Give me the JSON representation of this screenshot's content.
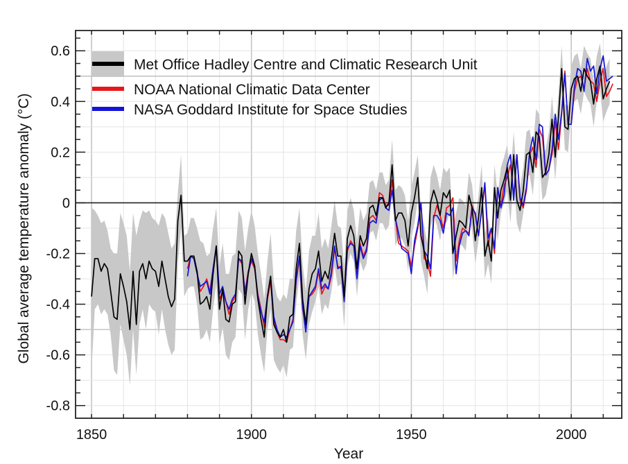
{
  "chart_data": {
    "type": "line",
    "title": "",
    "xlabel": "Year",
    "ylabel": "Global average temperature anomaly (°C)",
    "xlim": [
      1845,
      2015.8
    ],
    "ylim": [
      -0.85,
      0.68
    ],
    "x_ticks": [
      1850,
      1900,
      1950,
      2000
    ],
    "x_tick_labels": [
      "1850",
      "1900",
      "1950",
      "2000"
    ],
    "x_minor_step": 10,
    "y_ticks": [
      -0.8,
      -0.6,
      -0.4,
      -0.2,
      0,
      0.2,
      0.4,
      0.6
    ],
    "y_tick_labels": [
      "-0.8",
      "-0.6",
      "-0.4",
      "-0.2",
      "0",
      "0.2",
      "0.4",
      "0.6"
    ],
    "y_minor_step": 0.05,
    "grid": true,
    "emphasized_gridlines_y": [
      0.5,
      -0.5
    ],
    "zero_line": true,
    "legend_position": "top-left",
    "legend": [
      {
        "name": "Met Office Hadley Centre and Climatic Research Unit",
        "color": "#000000",
        "with_band": true,
        "band_color": "#c8c8c8"
      },
      {
        "name": "NOAA National Climatic Data Center",
        "color": "#e8161b"
      },
      {
        "name": "NASA Goddard Institute for Space Studies",
        "color": "#1414d8"
      }
    ],
    "series": [
      {
        "name": "Met Office Hadley Centre and Climatic Research Unit",
        "color": "#000000",
        "start_year": 1850,
        "values": [
          -0.37,
          -0.22,
          -0.22,
          -0.27,
          -0.24,
          -0.26,
          -0.35,
          -0.45,
          -0.46,
          -0.28,
          -0.33,
          -0.39,
          -0.5,
          -0.27,
          -0.48,
          -0.27,
          -0.24,
          -0.3,
          -0.23,
          -0.26,
          -0.27,
          -0.33,
          -0.23,
          -0.3,
          -0.37,
          -0.41,
          -0.38,
          -0.07,
          0.03,
          -0.23,
          -0.23,
          -0.21,
          -0.21,
          -0.27,
          -0.4,
          -0.39,
          -0.37,
          -0.42,
          -0.28,
          -0.17,
          -0.42,
          -0.34,
          -0.46,
          -0.47,
          -0.4,
          -0.39,
          -0.19,
          -0.21,
          -0.4,
          -0.28,
          -0.2,
          -0.25,
          -0.38,
          -0.46,
          -0.53,
          -0.37,
          -0.29,
          -0.48,
          -0.51,
          -0.53,
          -0.5,
          -0.55,
          -0.45,
          -0.44,
          -0.26,
          -0.16,
          -0.38,
          -0.48,
          -0.34,
          -0.28,
          -0.26,
          -0.19,
          -0.31,
          -0.27,
          -0.3,
          -0.22,
          -0.12,
          -0.21,
          -0.21,
          -0.37,
          -0.14,
          -0.09,
          -0.13,
          -0.26,
          -0.13,
          -0.17,
          -0.14,
          -0.02,
          -0.01,
          -0.05,
          0.02,
          0.02,
          -0.02,
          0.0,
          0.15,
          -0.07,
          -0.04,
          -0.04,
          -0.07,
          -0.17,
          -0.04,
          0.02,
          0.1,
          -0.13,
          -0.19,
          -0.26,
          0.0,
          0.05,
          0.01,
          -0.05,
          0.04,
          0.02,
          0.05,
          -0.2,
          -0.13,
          -0.07,
          -0.08,
          -0.1,
          0.03,
          -0.02,
          -0.15,
          -0.06,
          0.06,
          -0.21,
          -0.15,
          -0.23,
          0.06,
          -0.06,
          0.05,
          0.09,
          0.14,
          0.01,
          0.19,
          0.01,
          -0.03,
          0.05,
          0.19,
          0.2,
          0.12,
          0.28,
          0.26,
          0.1,
          0.12,
          0.19,
          0.33,
          0.18,
          0.34,
          0.53,
          0.3,
          0.29,
          0.45,
          0.49,
          0.5,
          0.44,
          0.53,
          0.5,
          0.48,
          0.39,
          0.49,
          0.54,
          0.41,
          0.45,
          0.48
        ]
      },
      {
        "name": "NOAA National Climatic Data Center",
        "color": "#e8161b",
        "start_year": 1880,
        "values": [
          -0.26,
          -0.21,
          -0.22,
          -0.27,
          -0.35,
          -0.33,
          -0.3,
          -0.35,
          -0.26,
          -0.18,
          -0.38,
          -0.35,
          -0.39,
          -0.44,
          -0.39,
          -0.37,
          -0.22,
          -0.24,
          -0.35,
          -0.27,
          -0.23,
          -0.26,
          -0.36,
          -0.42,
          -0.49,
          -0.38,
          -0.31,
          -0.46,
          -0.51,
          -0.54,
          -0.54,
          -0.55,
          -0.5,
          -0.46,
          -0.31,
          -0.22,
          -0.42,
          -0.49,
          -0.37,
          -0.36,
          -0.34,
          -0.27,
          -0.36,
          -0.33,
          -0.34,
          -0.29,
          -0.18,
          -0.25,
          -0.26,
          -0.38,
          -0.19,
          -0.15,
          -0.17,
          -0.29,
          -0.16,
          -0.21,
          -0.18,
          -0.06,
          -0.05,
          -0.07,
          0.04,
          0.03,
          -0.01,
          -0.01,
          0.09,
          -0.06,
          -0.16,
          -0.17,
          -0.18,
          -0.19,
          -0.25,
          -0.17,
          -0.1,
          0.0,
          -0.22,
          -0.23,
          -0.29,
          -0.06,
          -0.01,
          -0.05,
          -0.1,
          -0.02,
          -0.01,
          0.02,
          -0.23,
          -0.15,
          -0.1,
          -0.11,
          -0.12,
          -0.01,
          -0.05,
          -0.13,
          -0.03,
          0.07,
          -0.17,
          -0.1,
          -0.2,
          0.06,
          -0.01,
          0.07,
          0.1,
          0.15,
          0.03,
          0.19,
          0.01,
          -0.02,
          0.05,
          0.19,
          0.22,
          0.14,
          0.29,
          0.26,
          0.11,
          0.13,
          0.19,
          0.32,
          0.21,
          0.35,
          0.52,
          0.31,
          0.31,
          0.44,
          0.49,
          0.5,
          0.45,
          0.53,
          0.48,
          0.47,
          0.4,
          0.48,
          0.53,
          0.42,
          0.44,
          0.47
        ]
      },
      {
        "name": "NASA Goddard Institute for Space Studies",
        "color": "#1414d8",
        "start_year": 1880,
        "values": [
          -0.29,
          -0.21,
          -0.22,
          -0.28,
          -0.33,
          -0.32,
          -0.31,
          -0.36,
          -0.26,
          -0.17,
          -0.36,
          -0.33,
          -0.39,
          -0.42,
          -0.38,
          -0.36,
          -0.22,
          -0.23,
          -0.36,
          -0.28,
          -0.22,
          -0.25,
          -0.37,
          -0.43,
          -0.47,
          -0.37,
          -0.29,
          -0.45,
          -0.5,
          -0.53,
          -0.52,
          -0.53,
          -0.5,
          -0.47,
          -0.3,
          -0.21,
          -0.41,
          -0.51,
          -0.37,
          -0.35,
          -0.33,
          -0.26,
          -0.34,
          -0.32,
          -0.34,
          -0.27,
          -0.17,
          -0.26,
          -0.25,
          -0.39,
          -0.18,
          -0.16,
          -0.17,
          -0.3,
          -0.17,
          -0.22,
          -0.19,
          -0.08,
          -0.07,
          -0.08,
          0.01,
          0.02,
          -0.02,
          -0.03,
          0.05,
          -0.06,
          -0.12,
          -0.18,
          -0.19,
          -0.2,
          -0.28,
          -0.15,
          -0.09,
          0.0,
          -0.19,
          -0.21,
          -0.26,
          -0.05,
          -0.05,
          -0.07,
          -0.12,
          -0.04,
          -0.05,
          -0.02,
          -0.28,
          -0.17,
          -0.12,
          -0.11,
          -0.13,
          -0.02,
          -0.04,
          -0.13,
          -0.03,
          0.08,
          -0.14,
          -0.1,
          -0.18,
          0.06,
          -0.02,
          0.03,
          0.15,
          0.19,
          0.01,
          0.19,
          0.02,
          -0.01,
          0.06,
          0.2,
          0.26,
          0.17,
          0.31,
          0.3,
          0.11,
          0.13,
          0.21,
          0.35,
          0.25,
          0.36,
          0.51,
          0.31,
          0.31,
          0.46,
          0.53,
          0.52,
          0.44,
          0.57,
          0.52,
          0.54,
          0.43,
          0.53,
          0.58,
          0.48,
          0.49,
          0.5
        ]
      }
    ],
    "uncertainty_band": {
      "series": "Met Office Hadley Centre and Climatic Research Unit",
      "color": "#c8c8c8",
      "start_year": 1850,
      "upper": [
        -0.02,
        -0.03,
        -0.05,
        -0.08,
        -0.07,
        -0.11,
        -0.18,
        -0.2,
        -0.2,
        -0.04,
        -0.08,
        -0.13,
        -0.27,
        -0.04,
        -0.13,
        -0.07,
        -0.03,
        -0.04,
        -0.03,
        -0.06,
        -0.07,
        -0.09,
        -0.04,
        -0.06,
        -0.12,
        -0.18,
        -0.16,
        0.04,
        0.19,
        -0.13,
        -0.12,
        -0.06,
        -0.06,
        -0.1,
        -0.15,
        -0.16,
        -0.21,
        -0.2,
        -0.1,
        -0.02,
        -0.25,
        -0.16,
        -0.28,
        -0.28,
        -0.21,
        -0.2,
        -0.03,
        -0.06,
        -0.19,
        -0.1,
        -0.03,
        -0.09,
        -0.2,
        -0.28,
        -0.38,
        -0.23,
        -0.12,
        -0.31,
        -0.37,
        -0.39,
        -0.36,
        -0.38,
        -0.3,
        -0.3,
        -0.11,
        -0.02,
        -0.24,
        -0.35,
        -0.19,
        -0.13,
        -0.13,
        -0.04,
        -0.18,
        -0.14,
        -0.18,
        -0.09,
        0.01,
        -0.09,
        -0.1,
        -0.25,
        -0.03,
        0.02,
        -0.03,
        -0.15,
        -0.02,
        -0.07,
        -0.04,
        0.08,
        0.09,
        0.05,
        0.12,
        0.12,
        0.07,
        0.09,
        0.25,
        0.05,
        0.07,
        0.06,
        0.03,
        -0.07,
        0.06,
        0.12,
        0.19,
        -0.03,
        -0.09,
        -0.16,
        0.1,
        0.15,
        0.11,
        0.05,
        0.14,
        0.12,
        0.14,
        -0.1,
        -0.04,
        0.02,
        0.01,
        -0.01,
        0.12,
        0.07,
        -0.06,
        0.03,
        0.15,
        -0.12,
        -0.06,
        -0.14,
        0.15,
        0.03,
        0.14,
        0.18,
        0.23,
        0.1,
        0.28,
        0.1,
        0.06,
        0.14,
        0.28,
        0.29,
        0.21,
        0.37,
        0.35,
        0.19,
        0.21,
        0.28,
        0.42,
        0.27,
        0.43,
        0.62,
        0.39,
        0.38,
        0.54,
        0.58,
        0.59,
        0.53,
        0.62,
        0.59,
        0.57,
        0.48,
        0.58,
        0.63,
        0.5,
        0.54,
        0.57
      ],
      "lower": [
        -0.66,
        -0.42,
        -0.4,
        -0.44,
        -0.42,
        -0.44,
        -0.52,
        -0.66,
        -0.68,
        -0.48,
        -0.54,
        -0.6,
        -0.72,
        -0.5,
        -0.68,
        -0.48,
        -0.42,
        -0.5,
        -0.4,
        -0.42,
        -0.43,
        -0.52,
        -0.42,
        -0.5,
        -0.56,
        -0.6,
        -0.58,
        -0.24,
        -0.1,
        -0.37,
        -0.34,
        -0.33,
        -0.33,
        -0.4,
        -0.54,
        -0.53,
        -0.5,
        -0.55,
        -0.42,
        -0.32,
        -0.56,
        -0.49,
        -0.6,
        -0.62,
        -0.55,
        -0.53,
        -0.34,
        -0.36,
        -0.54,
        -0.42,
        -0.35,
        -0.39,
        -0.52,
        -0.6,
        -0.67,
        -0.5,
        -0.42,
        -0.62,
        -0.65,
        -0.67,
        -0.64,
        -0.69,
        -0.58,
        -0.57,
        -0.4,
        -0.29,
        -0.52,
        -0.62,
        -0.48,
        -0.43,
        -0.39,
        -0.33,
        -0.44,
        -0.4,
        -0.42,
        -0.35,
        -0.25,
        -0.33,
        -0.32,
        -0.49,
        -0.25,
        -0.2,
        -0.23,
        -0.37,
        -0.23,
        -0.27,
        -0.24,
        -0.12,
        -0.11,
        -0.15,
        -0.08,
        -0.08,
        -0.11,
        -0.09,
        0.05,
        -0.17,
        -0.14,
        -0.14,
        -0.17,
        -0.27,
        -0.14,
        -0.08,
        0.01,
        -0.23,
        -0.29,
        -0.36,
        -0.1,
        -0.05,
        -0.09,
        -0.15,
        -0.06,
        -0.08,
        -0.04,
        -0.3,
        -0.22,
        -0.16,
        -0.17,
        -0.19,
        -0.06,
        -0.11,
        -0.24,
        -0.15,
        -0.03,
        -0.3,
        -0.24,
        -0.32,
        -0.03,
        -0.15,
        -0.04,
        0.0,
        0.05,
        -0.08,
        0.1,
        -0.08,
        -0.12,
        -0.04,
        0.1,
        0.11,
        0.03,
        0.19,
        0.17,
        0.01,
        0.03,
        0.1,
        0.24,
        0.09,
        0.25,
        0.44,
        0.21,
        0.2,
        0.36,
        0.4,
        0.41,
        0.35,
        0.44,
        0.41,
        0.39,
        0.3,
        0.4,
        0.45,
        0.32,
        0.36,
        0.39
      ]
    }
  }
}
